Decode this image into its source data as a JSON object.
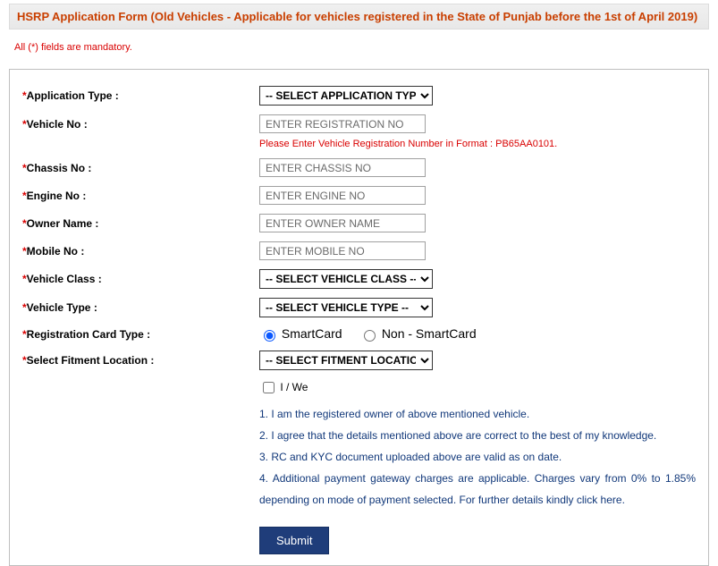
{
  "header": {
    "title": "HSRP Application Form (Old Vehicles - Applicable for vehicles registered in the State of Punjab before the 1st of April 2019)"
  },
  "notes": {
    "mandatory": "All (*) fields are mandatory.",
    "vehicle_format_hint": "Please Enter Vehicle Registration Number in Format : PB65AA0101."
  },
  "labels": {
    "application_type": "Application Type :",
    "vehicle_no": "Vehicle No :",
    "chassis_no": "Chassis No :",
    "engine_no": "Engine No :",
    "owner_name": "Owner Name :",
    "mobile_no": "Mobile No :",
    "vehicle_class": "Vehicle Class :",
    "vehicle_type": "Vehicle Type :",
    "registration_card_type": "Registration Card Type :",
    "fitment_location": "Select Fitment Location :"
  },
  "placeholders": {
    "vehicle_no": "ENTER REGISTRATION NO",
    "chassis_no": "ENTER CHASSIS NO",
    "engine_no": "ENTER ENGINE NO",
    "owner_name": "ENTER OWNER NAME",
    "mobile_no": "ENTER MOBILE NO"
  },
  "selects": {
    "application_type": "-- SELECT APPLICATION TYPE --",
    "vehicle_class": "-- SELECT VEHICLE CLASS --",
    "vehicle_type": "-- SELECT VEHICLE TYPE --",
    "fitment_location": "-- SELECT FITMENT LOCATION --"
  },
  "radios": {
    "smartcard": "SmartCard",
    "non_smartcard": "Non - SmartCard"
  },
  "consent": {
    "label": "I / We"
  },
  "terms": {
    "t1": "1. I am the registered owner of above mentioned vehicle.",
    "t2": "2. I agree that the details mentioned above are correct to the best of my knowledge.",
    "t3": "3. RC and KYC document uploaded above are valid as on date.",
    "t4a": "4. Additional payment gateway charges are applicable. Charges vary from 0% to 1.85% depending on mode of payment selected. For further details kindly ",
    "t4link": "click here",
    "t4b": "."
  },
  "buttons": {
    "submit": "Submit"
  },
  "colors": {
    "header_text": "#c93f00",
    "error_text": "#d90000",
    "terms_text": "#11387a",
    "submit_bg": "#1f3d7a"
  }
}
